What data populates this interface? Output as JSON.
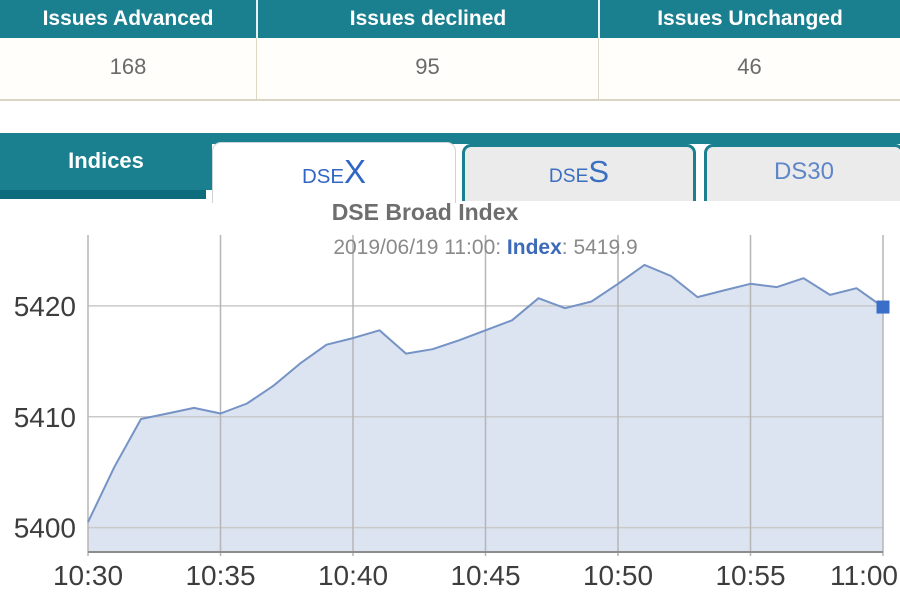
{
  "colors": {
    "teal": "#1a7f8e",
    "teal_dark": "#0e6d7d",
    "active_tab_text": "#3266c5",
    "ds30_text": "#5e86c9"
  },
  "summary_table": {
    "columns": [
      {
        "header": "Issues Advanced",
        "value": "168"
      },
      {
        "header": "Issues declined",
        "value": "95"
      },
      {
        "header": "Issues Unchanged",
        "value": "46"
      }
    ]
  },
  "tabs": {
    "panel_label": "Indices",
    "dsex": {
      "prefix": "DSE",
      "suffix": "X"
    },
    "dses": {
      "prefix": "DSE",
      "suffix": "S"
    },
    "ds30": {
      "label": "DS30"
    }
  },
  "chart_data": {
    "type": "area",
    "title": "DSE Broad Index",
    "subtitle": {
      "datetime": "2019/06/19 11:00",
      "sep": ": ",
      "series_label": "Index",
      "latest_value": "5419.9"
    },
    "xlabel": "",
    "ylabel": "",
    "grid": true,
    "legend": "none",
    "times": [
      "10:30",
      "10:31",
      "10:32",
      "10:33",
      "10:34",
      "10:35",
      "10:36",
      "10:37",
      "10:38",
      "10:39",
      "10:40",
      "10:41",
      "10:42",
      "10:43",
      "10:44",
      "10:45",
      "10:46",
      "10:47",
      "10:48",
      "10:49",
      "10:50",
      "10:51",
      "10:52",
      "10:53",
      "10:54",
      "10:55",
      "10:56",
      "10:57",
      "10:58",
      "10:59",
      "11:00"
    ],
    "values": [
      5400.5,
      5405.5,
      5409.8,
      5410.3,
      5410.8,
      5410.3,
      5411.2,
      5412.8,
      5414.8,
      5416.5,
      5417.1,
      5417.8,
      5415.7,
      5416.1,
      5416.9,
      5417.8,
      5418.7,
      5420.7,
      5419.8,
      5420.4,
      5422.0,
      5423.7,
      5422.7,
      5420.8,
      5421.4,
      5422.0,
      5421.7,
      5422.5,
      5421.0,
      5421.6,
      5419.9
    ],
    "x_ticks": [
      {
        "index": 0,
        "label": "10:30"
      },
      {
        "index": 5,
        "label": "10:35"
      },
      {
        "index": 10,
        "label": "10:40"
      },
      {
        "index": 15,
        "label": "10:45"
      },
      {
        "index": 20,
        "label": "10:50"
      },
      {
        "index": 25,
        "label": "10:55"
      },
      {
        "index": 30,
        "label": "11:00"
      }
    ],
    "y_ticks": [
      {
        "value": 5400,
        "label": "5400"
      },
      {
        "value": 5410,
        "label": "5410"
      },
      {
        "value": 5420,
        "label": "5420"
      }
    ],
    "ylim": [
      5397.8,
      5426.4
    ],
    "colors": {
      "line": "#7593c5",
      "fill": "#dce3f1",
      "marker": "#3a6fc9",
      "grid_h": "#c9c9c9",
      "grid_v": "#b6b6b6",
      "axis": "#8c8c8c",
      "tick_text": "#3d3d3d"
    }
  }
}
